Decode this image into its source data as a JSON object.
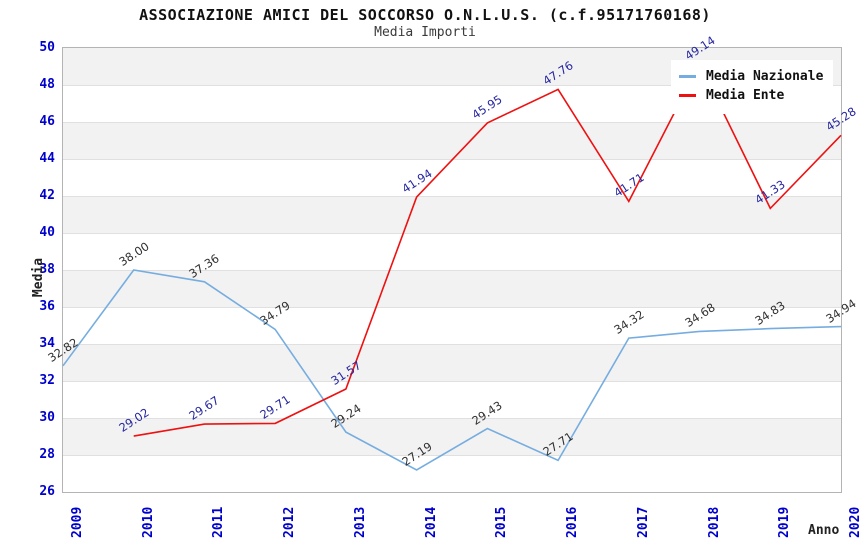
{
  "header": {
    "title": "ASSOCIAZIONE AMICI DEL SOCCORSO O.N.L.U.S. (c.f.95171760168)",
    "subtitle": "Media Importi"
  },
  "chart_data": {
    "type": "line",
    "x": [
      "2009",
      "2010",
      "2011",
      "2012",
      "2013",
      "2014",
      "2015",
      "2016",
      "2017",
      "2018",
      "2019",
      "2020"
    ],
    "xlabel": "Anno",
    "ylabel": "Media",
    "ylim": [
      26,
      50
    ],
    "ytick_step": 2,
    "yticks": [
      26,
      28,
      30,
      32,
      34,
      36,
      38,
      40,
      42,
      44,
      46,
      48,
      50
    ],
    "grid": "horizontal-only, alternating gray bands every 2 units",
    "legend_position": "top-right-inside",
    "series": [
      {
        "name": "Media Nazionale",
        "color": "#76ade0",
        "label_color": "#303030",
        "values": [
          32.82,
          38.0,
          37.36,
          34.79,
          29.24,
          27.19,
          29.43,
          27.71,
          34.32,
          34.68,
          34.83,
          34.94
        ]
      },
      {
        "name": "Media Ente",
        "color": "#ee1111",
        "label_color": "#2626a0",
        "values": [
          null,
          29.02,
          29.67,
          29.71,
          31.57,
          41.94,
          45.95,
          47.76,
          41.71,
          49.14,
          41.33,
          45.28
        ]
      }
    ],
    "colors": {
      "axis_tick_text": "#0000cd",
      "band_gray": "#f2f2f2",
      "gridline": "#e0e0e0",
      "plot_border": "#b4b4b4",
      "background": "#ffffff"
    }
  }
}
